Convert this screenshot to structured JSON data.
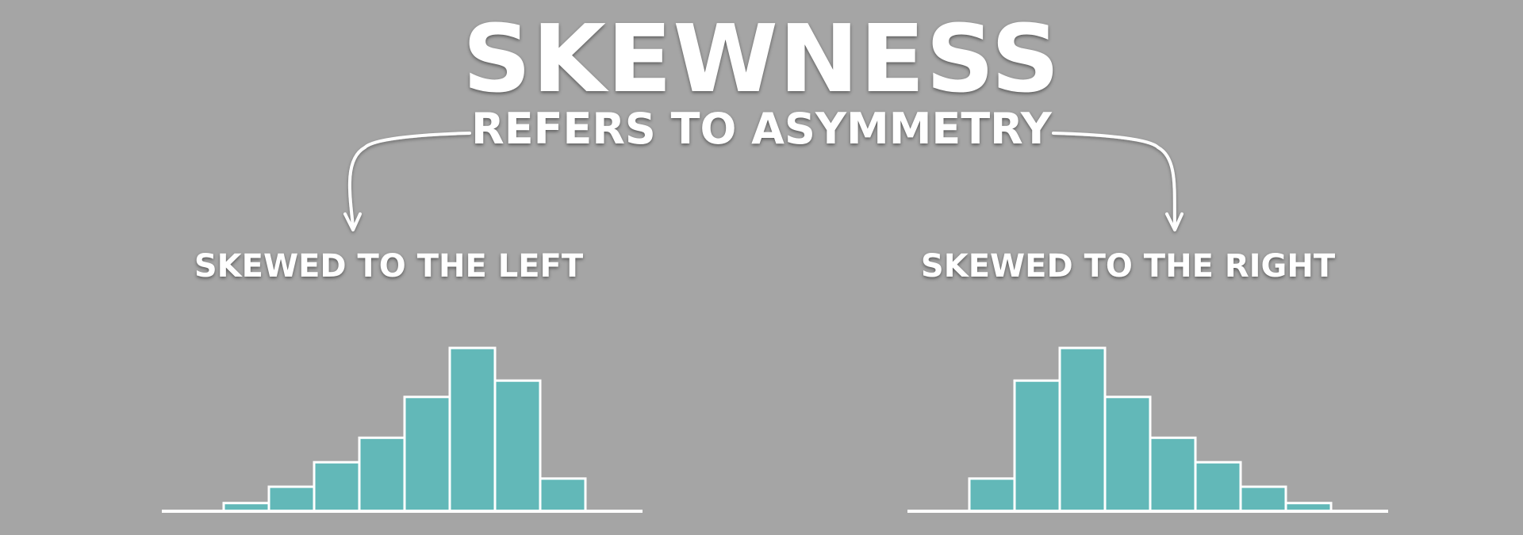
{
  "title": "SKEWNESS",
  "subtitle": "REFERS TO ASYMMETRY",
  "colors": {
    "background": "#a5a5a5",
    "bar_fill": "#62b8b8",
    "bar_stroke": "#ffffff",
    "text": "#ffffff"
  },
  "chart_data": [
    {
      "type": "bar",
      "title": "SKEWED TO THE LEFT",
      "values": [
        1,
        3,
        6,
        9,
        14,
        20,
        16,
        4
      ],
      "xlabel": "",
      "ylabel": ""
    },
    {
      "type": "bar",
      "title": "SKEWED TO THE RIGHT",
      "values": [
        4,
        16,
        20,
        14,
        9,
        6,
        3,
        1
      ],
      "xlabel": "",
      "ylabel": ""
    }
  ]
}
